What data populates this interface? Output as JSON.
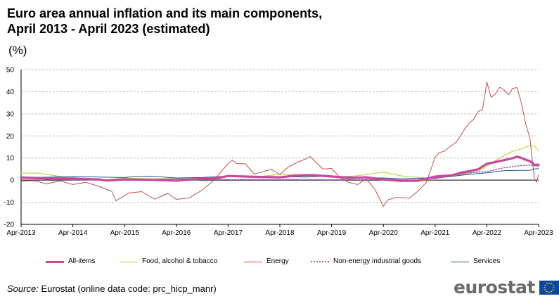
{
  "title_line1": "Euro area annual inflation and its main components,",
  "title_line2": "April 2013 - April 2023 (estimated)",
  "unit": "(%)",
  "source_label": "Source:",
  "source_text": "Eurostat (online data code: prc_hicp_manr)",
  "logo_text": "eurostat",
  "chart_data": {
    "type": "line",
    "title": "Euro area annual inflation and its main components, April 2013 - April 2023 (estimated)",
    "ylabel": "(%)",
    "xlabel": "",
    "ylim": [
      -20,
      50
    ],
    "yticks": [
      -20,
      -10,
      0,
      10,
      20,
      30,
      40,
      50
    ],
    "grid": "horizontal-dashed",
    "legend_position": "bottom",
    "x_start": "Apr-2013",
    "x_end": "Apr-2023",
    "x_tick_labels": [
      "Apr-2013",
      "Apr-2014",
      "Apr-2015",
      "Apr-2016",
      "Apr-2017",
      "Apr-2018",
      "Apr-2019",
      "Apr-2020",
      "Apr-2021",
      "Apr-2022",
      "Apr-2023"
    ],
    "x_months_offset": [
      0,
      12,
      24,
      36,
      48,
      60,
      72,
      84,
      96,
      108,
      120
    ],
    "series": [
      {
        "name": "All-items",
        "color": "#c7489c",
        "style": "thick",
        "points": [
          [
            0,
            1.2
          ],
          [
            6,
            0.8
          ],
          [
            12,
            0.7
          ],
          [
            18,
            0.3
          ],
          [
            20,
            -0.2
          ],
          [
            24,
            0.3
          ],
          [
            30,
            0.1
          ],
          [
            36,
            -0.2
          ],
          [
            42,
            0.6
          ],
          [
            46,
            1.1
          ],
          [
            48,
            1.9
          ],
          [
            54,
            1.5
          ],
          [
            60,
            1.3
          ],
          [
            64,
            2.1
          ],
          [
            67,
            2.3
          ],
          [
            72,
            1.7
          ],
          [
            76,
            1.0
          ],
          [
            80,
            1.3
          ],
          [
            84,
            0.3
          ],
          [
            88,
            -0.3
          ],
          [
            92,
            -0.3
          ],
          [
            96,
            1.6
          ],
          [
            100,
            2.2
          ],
          [
            102,
            3.4
          ],
          [
            104,
            4.1
          ],
          [
            106,
            4.9
          ],
          [
            108,
            7.4
          ],
          [
            111,
            8.6
          ],
          [
            114,
            9.9
          ],
          [
            115,
            10.6
          ],
          [
            116,
            10.1
          ],
          [
            117,
            9.2
          ],
          [
            118,
            8.6
          ],
          [
            119,
            6.9
          ],
          [
            120,
            7.0
          ]
        ]
      },
      {
        "name": "Food, alcohol & tobacco",
        "color": "#b5cb2e",
        "style": "thin",
        "points": [
          [
            0,
            3.2
          ],
          [
            4,
            3.2
          ],
          [
            8,
            2.0
          ],
          [
            12,
            0.7
          ],
          [
            18,
            -0.1
          ],
          [
            24,
            1.0
          ],
          [
            30,
            0.6
          ],
          [
            36,
            0.8
          ],
          [
            42,
            1.0
          ],
          [
            48,
            1.8
          ],
          [
            54,
            1.4
          ],
          [
            60,
            2.6
          ],
          [
            66,
            2.4
          ],
          [
            72,
            1.2
          ],
          [
            78,
            2.0
          ],
          [
            84,
            3.6
          ],
          [
            88,
            2.0
          ],
          [
            90,
            1.5
          ],
          [
            96,
            0.8
          ],
          [
            100,
            2.0
          ],
          [
            104,
            3.0
          ],
          [
            106,
            4.0
          ],
          [
            108,
            6.3
          ],
          [
            110,
            8.9
          ],
          [
            112,
            11.0
          ],
          [
            114,
            13.1
          ],
          [
            116,
            14.1
          ],
          [
            117,
            15.0
          ],
          [
            118,
            15.5
          ],
          [
            119,
            15.4
          ],
          [
            120,
            13.5
          ]
        ]
      },
      {
        "name": "Energy",
        "color": "#c0504d",
        "style": "thin",
        "points": [
          [
            0,
            -0.4
          ],
          [
            3,
            -0.2
          ],
          [
            6,
            -1.7
          ],
          [
            9,
            -0.3
          ],
          [
            12,
            -2.0
          ],
          [
            15,
            -1.0
          ],
          [
            18,
            -2.8
          ],
          [
            21,
            -5.0
          ],
          [
            22,
            -9.3
          ],
          [
            25,
            -5.8
          ],
          [
            28,
            -5.2
          ],
          [
            31,
            -8.6
          ],
          [
            34,
            -6.0
          ],
          [
            36,
            -8.7
          ],
          [
            39,
            -8.0
          ],
          [
            42,
            -4.5
          ],
          [
            45,
            0.5
          ],
          [
            48,
            7.6
          ],
          [
            49,
            9.0
          ],
          [
            50,
            7.5
          ],
          [
            52,
            7.4
          ],
          [
            54,
            2.8
          ],
          [
            56,
            3.8
          ],
          [
            58,
            4.9
          ],
          [
            60,
            2.6
          ],
          [
            62,
            6.0
          ],
          [
            64,
            8.0
          ],
          [
            66,
            9.6
          ],
          [
            67,
            10.7
          ],
          [
            70,
            5.0
          ],
          [
            72,
            5.3
          ],
          [
            74,
            1.0
          ],
          [
            76,
            -1.0
          ],
          [
            78,
            -2.0
          ],
          [
            80,
            0.5
          ],
          [
            82,
            -4.0
          ],
          [
            84,
            -11.9
          ],
          [
            85,
            -9.0
          ],
          [
            87,
            -7.8
          ],
          [
            90,
            -8.2
          ],
          [
            92,
            -5.0
          ],
          [
            94,
            -1.0
          ],
          [
            96,
            10.4
          ],
          [
            97,
            12.5
          ],
          [
            98,
            13.0
          ],
          [
            101,
            17.4
          ],
          [
            103,
            23.5
          ],
          [
            104,
            26.0
          ],
          [
            105,
            27.6
          ],
          [
            106,
            31.0
          ],
          [
            107,
            32.0
          ],
          [
            108,
            44.4
          ],
          [
            109,
            37.5
          ],
          [
            110,
            39.1
          ],
          [
            111,
            42.0
          ],
          [
            112,
            40.8
          ],
          [
            113,
            38.6
          ],
          [
            114,
            41.5
          ],
          [
            115,
            41.9
          ],
          [
            116,
            34.9
          ],
          [
            117,
            25.5
          ],
          [
            118,
            18.9
          ],
          [
            119,
            0.8
          ],
          [
            119.5,
            -0.9
          ],
          [
            120,
            2.5
          ]
        ]
      },
      {
        "name": "Non-energy industrial goods",
        "color": "#9b59b6",
        "style": "dotted",
        "points": [
          [
            0,
            0.8
          ],
          [
            12,
            0.1
          ],
          [
            24,
            0.1
          ],
          [
            36,
            0.6
          ],
          [
            48,
            0.3
          ],
          [
            60,
            0.3
          ],
          [
            72,
            0.2
          ],
          [
            84,
            0.3
          ],
          [
            96,
            0.7
          ],
          [
            100,
            2.1
          ],
          [
            104,
            3.4
          ],
          [
            108,
            3.8
          ],
          [
            112,
            5.6
          ],
          [
            114,
            6.1
          ],
          [
            116,
            6.6
          ],
          [
            118,
            6.8
          ],
          [
            120,
            6.2
          ]
        ]
      },
      {
        "name": "Services",
        "color": "#1f5c8b",
        "style": "thin",
        "points": [
          [
            0,
            1.1
          ],
          [
            12,
            1.6
          ],
          [
            24,
            1.2
          ],
          [
            26,
            1.6
          ],
          [
            30,
            1.8
          ],
          [
            36,
            1.0
          ],
          [
            42,
            1.2
          ],
          [
            48,
            1.8
          ],
          [
            54,
            1.3
          ],
          [
            60,
            1.6
          ],
          [
            66,
            1.4
          ],
          [
            72,
            1.9
          ],
          [
            76,
            1.5
          ],
          [
            80,
            1.1
          ],
          [
            84,
            1.0
          ],
          [
            88,
            0.6
          ],
          [
            92,
            0.8
          ],
          [
            96,
            0.9
          ],
          [
            100,
            1.7
          ],
          [
            104,
            2.7
          ],
          [
            108,
            3.3
          ],
          [
            112,
            4.3
          ],
          [
            116,
            4.4
          ],
          [
            118,
            4.4
          ],
          [
            119,
            5.1
          ],
          [
            120,
            5.2
          ]
        ]
      }
    ]
  }
}
